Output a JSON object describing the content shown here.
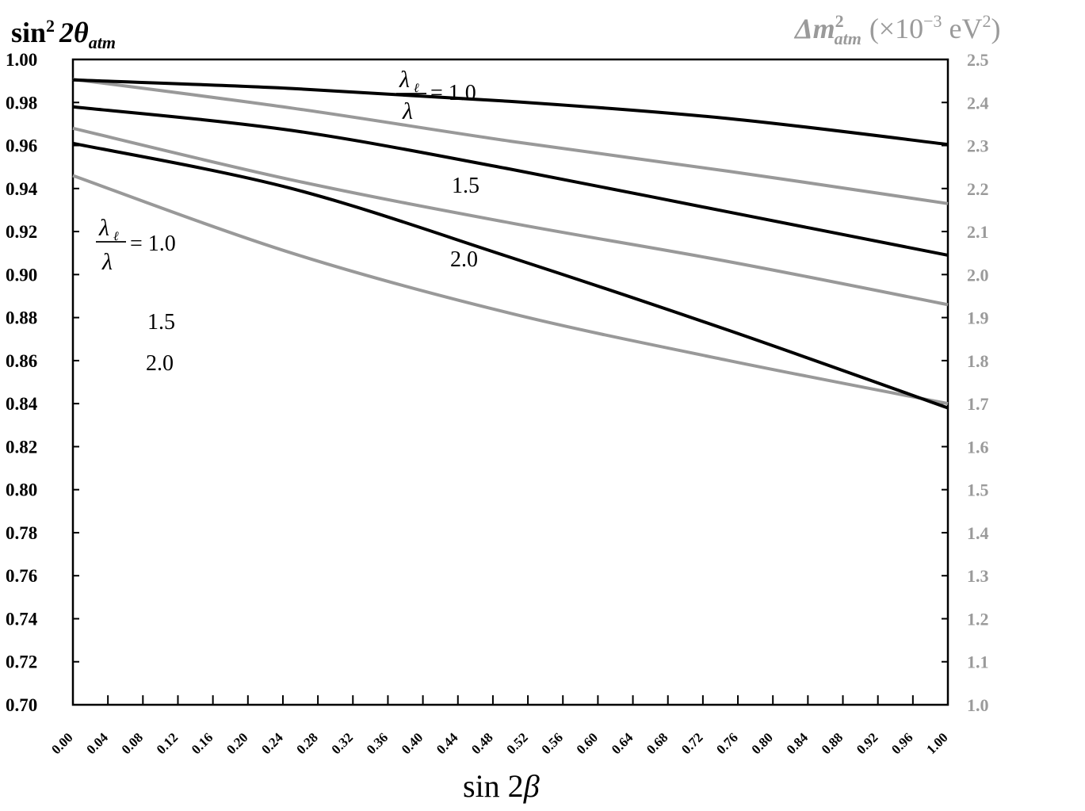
{
  "chart_data": {
    "type": "line",
    "y_left_label": {
      "main": "sin",
      "sup": "2",
      "mid": "2θ",
      "sub": "atm"
    },
    "y_right_label": {
      "delta_m": "Δm",
      "sup": "2",
      "sub": "atm",
      "units": "(×10",
      "exp": "−3",
      "ev": " eV",
      "ev_sup": "2",
      "close": ")"
    },
    "x_label": {
      "main": "sin 2",
      "beta": "β"
    },
    "x_ticks": [
      "0.00",
      "0.04",
      "0.08",
      "0.12",
      "0.16",
      "0.20",
      "0.24",
      "0.28",
      "0.32",
      "0.36",
      "0.40",
      "0.44",
      "0.48",
      "0.52",
      "0.56",
      "0.60",
      "0.64",
      "0.68",
      "0.72",
      "0.76",
      "0.80",
      "0.84",
      "0.88",
      "0.92",
      "0.96",
      "1.00"
    ],
    "y_left_ticks": [
      "1.00",
      "0.98",
      "0.96",
      "0.94",
      "0.92",
      "0.90",
      "0.88",
      "0.86",
      "0.84",
      "0.82",
      "0.80",
      "0.78",
      "0.76",
      "0.74",
      "0.72",
      "0.70"
    ],
    "y_right_ticks": [
      "2.5",
      "2.4",
      "2.3",
      "2.2",
      "2.1",
      "2.0",
      "1.9",
      "1.8",
      "1.7",
      "1.6",
      "1.5",
      "1.4",
      "1.3",
      "1.2",
      "1.1",
      "1.0"
    ],
    "xlim": [
      0,
      1
    ],
    "ylim_left": [
      0.7,
      1.0
    ],
    "ylim_right": [
      1.0,
      2.5
    ],
    "grid": false,
    "colors": {
      "left_series": "#000000",
      "right_series": "#999999",
      "right_axis_text": "#9a9a9a"
    },
    "left_series": [
      {
        "name": "1.0",
        "x": [
          0,
          0.25,
          0.5,
          0.75,
          1.0
        ],
        "y": [
          0.9905,
          0.9865,
          0.9805,
          0.9725,
          0.9605
        ]
      },
      {
        "name": "1.5",
        "x": [
          0,
          0.25,
          0.5,
          0.75,
          1.0
        ],
        "y": [
          0.978,
          0.967,
          0.949,
          0.929,
          0.909
        ]
      },
      {
        "name": "2.0",
        "x": [
          0,
          0.25,
          0.5,
          0.75,
          1.0
        ],
        "y": [
          0.961,
          0.94,
          0.908,
          0.874,
          0.838
        ]
      }
    ],
    "right_series": [
      {
        "name": "1.0",
        "x": [
          0,
          0.25,
          0.5,
          0.75,
          1.0
        ],
        "y": [
          2.454,
          2.387,
          2.31,
          2.24,
          2.165
        ]
      },
      {
        "name": "1.5",
        "x": [
          0,
          0.25,
          0.5,
          0.75,
          1.0
        ],
        "y": [
          2.34,
          2.22,
          2.12,
          2.03,
          1.93
        ]
      },
      {
        "name": "2.0",
        "x": [
          0,
          0.25,
          0.5,
          0.75,
          1.0
        ],
        "y": [
          2.23,
          2.05,
          1.91,
          1.8,
          1.7
        ]
      }
    ],
    "annotations": {
      "gray_top_numer": "λ",
      "gray_top_numer_sub": "ℓ",
      "gray_top_denom": "λ",
      "gray_top_value": "= 1.0",
      "gray_mid": "1.5",
      "gray_low": "2.0",
      "black_top_numer": "λ",
      "black_top_numer_sub": "ℓ",
      "black_top_denom": "λ",
      "black_top_value": "= 1.0",
      "black_mid": "1.5",
      "black_low": "2.0"
    }
  }
}
